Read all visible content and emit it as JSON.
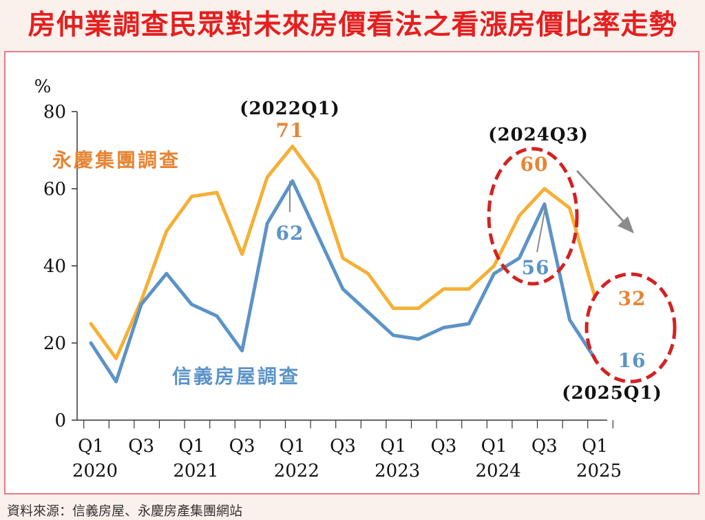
{
  "title": "房仲業調查民眾對未來房價看法之看漲房價比率走勢",
  "source": "資料來源：信義房屋、永慶房產集團網站",
  "chart_data": {
    "type": "line",
    "ylabel": "%",
    "ylim": [
      0,
      80
    ],
    "yticks": [
      0,
      20,
      40,
      60,
      80
    ],
    "x": [
      "2020Q1",
      "2020Q2",
      "2020Q3",
      "2020Q4",
      "2021Q1",
      "2021Q2",
      "2021Q3",
      "2021Q4",
      "2022Q1",
      "2022Q2",
      "2022Q3",
      "2022Q4",
      "2023Q1",
      "2023Q2",
      "2023Q3",
      "2023Q4",
      "2024Q1",
      "2024Q2",
      "2024Q3",
      "2024Q4",
      "2025Q1"
    ],
    "xtick_labels": [
      {
        "q": "Q1",
        "year": "2020"
      },
      {
        "q": "Q3",
        "year": ""
      },
      {
        "q": "Q1",
        "year": "2021"
      },
      {
        "q": "Q3",
        "year": ""
      },
      {
        "q": "Q1",
        "year": "2022"
      },
      {
        "q": "Q3",
        "year": ""
      },
      {
        "q": "Q1",
        "year": "2023"
      },
      {
        "q": "Q3",
        "year": ""
      },
      {
        "q": "Q1",
        "year": "2024"
      },
      {
        "q": "Q3",
        "year": ""
      },
      {
        "q": "Q1",
        "year": "2025"
      }
    ],
    "series": [
      {
        "name": "永慶集團調查",
        "color": "#f5b035",
        "values": [
          25,
          16,
          31,
          49,
          58,
          59,
          43,
          63,
          71,
          62,
          42,
          38,
          29,
          29,
          34,
          34,
          40,
          53,
          60,
          55,
          32
        ]
      },
      {
        "name": "信義房屋調查",
        "color": "#5b93c7",
        "values": [
          20,
          10,
          30,
          38,
          30,
          27,
          18,
          51,
          62,
          48,
          34,
          28,
          22,
          21,
          24,
          25,
          38,
          42,
          56,
          26,
          16
        ]
      }
    ],
    "annotations": [
      {
        "text": "(2022Q1)",
        "kind": "period"
      },
      {
        "text": "71",
        "series": 0,
        "index": 8
      },
      {
        "text": "62",
        "series": 1,
        "index": 8
      },
      {
        "text": "(2024Q3)",
        "kind": "period"
      },
      {
        "text": "60",
        "series": 0,
        "index": 18
      },
      {
        "text": "56",
        "series": 1,
        "index": 18
      },
      {
        "text": "32",
        "series": 0,
        "index": 20
      },
      {
        "text": "16",
        "series": 1,
        "index": 20
      },
      {
        "text": "(2025Q1)",
        "kind": "period"
      }
    ],
    "grid": false,
    "legend": "inline"
  }
}
